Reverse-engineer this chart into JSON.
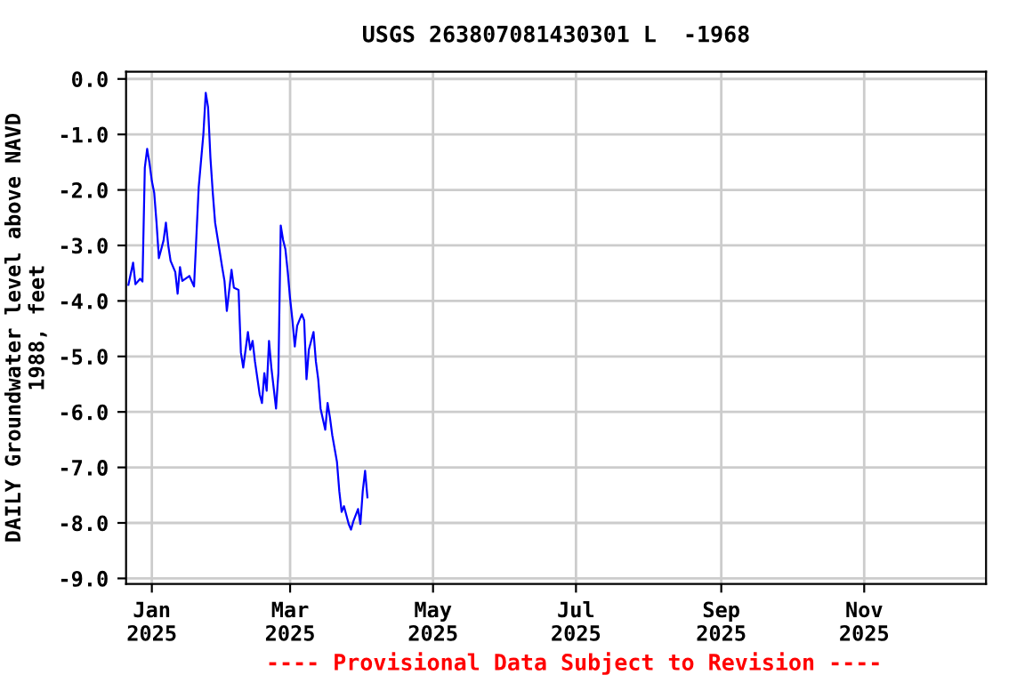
{
  "chart_data": {
    "type": "line",
    "title": "USGS 263807081430301 L  -1968",
    "ylabel": "DAILY Groundwater level above NAVD\n1988, feet",
    "annotations": [
      "---- Provisional Data Subject to Revision ----"
    ],
    "series": [
      {
        "color": "#0000ff",
        "x": [
          "2024-12-22",
          "2024-12-24",
          "2024-12-25",
          "2024-12-27",
          "2024-12-28",
          "2024-12-29",
          "2024-12-30",
          "2024-12-31",
          "2025-01-01",
          "2025-01-02",
          "2025-01-03",
          "2025-01-04",
          "2025-01-06",
          "2025-01-07",
          "2025-01-08",
          "2025-01-09",
          "2025-01-11",
          "2025-01-12",
          "2025-01-13",
          "2025-01-14",
          "2025-01-17",
          "2025-01-19",
          "2025-01-20",
          "2025-01-21",
          "2025-01-23",
          "2025-01-24",
          "2025-01-25",
          "2025-01-26",
          "2025-01-27",
          "2025-01-28",
          "2025-01-30",
          "2025-01-31",
          "2025-02-01",
          "2025-02-02",
          "2025-02-04",
          "2025-02-05",
          "2025-02-07",
          "2025-02-08",
          "2025-02-09",
          "2025-02-11",
          "2025-02-12",
          "2025-02-13",
          "2025-02-14",
          "2025-02-16",
          "2025-02-17",
          "2025-02-18",
          "2025-02-19",
          "2025-02-20",
          "2025-02-21",
          "2025-02-23",
          "2025-02-24",
          "2025-02-25",
          "2025-02-26",
          "2025-02-27",
          "2025-02-28",
          "2025-03-01",
          "2025-03-02",
          "2025-03-03",
          "2025-03-04",
          "2025-03-06",
          "2025-03-07",
          "2025-03-08",
          "2025-03-09",
          "2025-03-11",
          "2025-03-12",
          "2025-03-13",
          "2025-03-14",
          "2025-03-16",
          "2025-03-17",
          "2025-03-18",
          "2025-03-19",
          "2025-03-21",
          "2025-03-22",
          "2025-03-23",
          "2025-03-24",
          "2025-03-26",
          "2025-03-27",
          "2025-03-28",
          "2025-03-30",
          "2025-03-31",
          "2025-04-01",
          "2025-04-02",
          "2025-04-03"
        ],
        "values": [
          -3.71,
          -3.31,
          -3.7,
          -3.6,
          -3.65,
          -1.6,
          -1.26,
          -1.52,
          -1.84,
          -2.05,
          -2.59,
          -3.23,
          -2.91,
          -2.59,
          -3.0,
          -3.28,
          -3.48,
          -3.87,
          -3.39,
          -3.64,
          -3.55,
          -3.74,
          -2.84,
          -1.95,
          -0.99,
          -0.25,
          -0.51,
          -1.42,
          -2.05,
          -2.59,
          -3.12,
          -3.39,
          -3.64,
          -4.18,
          -3.44,
          -3.76,
          -3.8,
          -4.93,
          -5.2,
          -4.56,
          -4.88,
          -4.72,
          -5.09,
          -5.68,
          -5.84,
          -5.3,
          -5.62,
          -4.72,
          -5.2,
          -5.94,
          -5.3,
          -2.64,
          -2.9,
          -3.07,
          -3.48,
          -3.96,
          -4.35,
          -4.82,
          -4.45,
          -4.24,
          -4.35,
          -5.41,
          -4.88,
          -4.56,
          -5.09,
          -5.41,
          -5.94,
          -6.32,
          -5.84,
          -6.1,
          -6.42,
          -6.9,
          -7.43,
          -7.8,
          -7.7,
          -8.02,
          -8.12,
          -7.97,
          -7.75,
          -8.02,
          -7.43,
          -7.06,
          -7.54
        ]
      }
    ],
    "xlim": [
      "2024-12-21",
      "2025-12-23"
    ],
    "xticks": [
      {
        "value": "2025-01-01",
        "label": "Jan\n2025"
      },
      {
        "value": "2025-03-01",
        "label": "Mar\n2025"
      },
      {
        "value": "2025-05-01",
        "label": "May\n2025"
      },
      {
        "value": "2025-07-01",
        "label": "Jul\n2025"
      },
      {
        "value": "2025-09-01",
        "label": "Sep\n2025"
      },
      {
        "value": "2025-11-01",
        "label": "Nov\n2025"
      }
    ],
    "ylim": [
      -9.1,
      0.13
    ],
    "yticks": [
      {
        "value": 0,
        "label": "0.0"
      },
      {
        "value": -1,
        "label": "-1.0"
      },
      {
        "value": -2,
        "label": "-2.0"
      },
      {
        "value": -3,
        "label": "-3.0"
      },
      {
        "value": -4,
        "label": "-4.0"
      },
      {
        "value": -5,
        "label": "-5.0"
      },
      {
        "value": -6,
        "label": "-6.0"
      },
      {
        "value": -7,
        "label": "-7.0"
      },
      {
        "value": -8,
        "label": "-8.0"
      },
      {
        "value": -9,
        "label": "-9.0"
      }
    ],
    "grid": true,
    "legend": false,
    "marker": "none",
    "line_style": "solid"
  }
}
